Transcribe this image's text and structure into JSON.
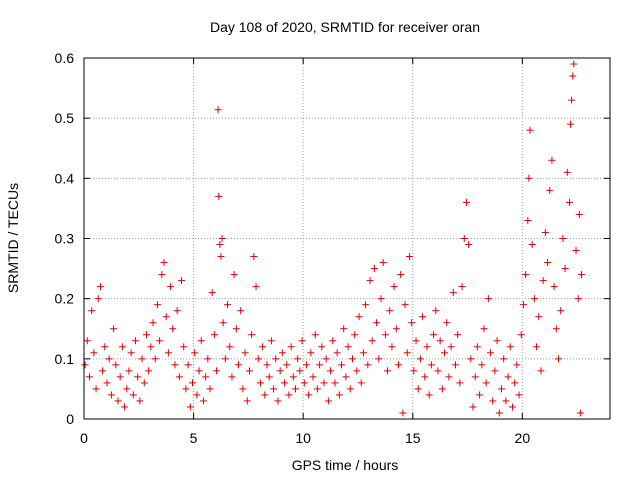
{
  "chart_data": {
    "type": "scatter",
    "title": "Day 108 of 2020, SRMTID for receiver oran",
    "xlabel": "GPS time / hours",
    "ylabel": "SRMTID / TECUs",
    "xlim": [
      0,
      24
    ],
    "ylim": [
      0,
      0.6
    ],
    "xticks": [
      {
        "value": 0,
        "label": "0"
      },
      {
        "value": 5,
        "label": "5"
      },
      {
        "value": 10,
        "label": "10"
      },
      {
        "value": 15,
        "label": "15"
      },
      {
        "value": 20,
        "label": "20"
      }
    ],
    "yticks": [
      {
        "value": 0,
        "label": "0"
      },
      {
        "value": 0.1,
        "label": "0.1"
      },
      {
        "value": 0.2,
        "label": "0.2"
      },
      {
        "value": 0.3,
        "label": "0.3"
      },
      {
        "value": 0.4,
        "label": "0.4"
      },
      {
        "value": 0.5,
        "label": "0.5"
      },
      {
        "value": 0.6,
        "label": "0.6"
      }
    ],
    "grid": true,
    "marker": "+",
    "color": "#e00000",
    "series": [
      {
        "name": "SRMTID",
        "points": [
          [
            0.05,
            0.09
          ],
          [
            0.15,
            0.13
          ],
          [
            0.25,
            0.07
          ],
          [
            0.35,
            0.18
          ],
          [
            0.45,
            0.11
          ],
          [
            0.55,
            0.05
          ],
          [
            0.65,
            0.2
          ],
          [
            0.75,
            0.22
          ],
          [
            0.85,
            0.08
          ],
          [
            0.95,
            0.12
          ],
          [
            1.05,
            0.06
          ],
          [
            1.15,
            0.1
          ],
          [
            1.25,
            0.04
          ],
          [
            1.35,
            0.15
          ],
          [
            1.45,
            0.09
          ],
          [
            1.55,
            0.03
          ],
          [
            1.65,
            0.07
          ],
          [
            1.75,
            0.12
          ],
          [
            1.85,
            0.02
          ],
          [
            1.95,
            0.05
          ],
          [
            2.05,
            0.08
          ],
          [
            2.15,
            0.11
          ],
          [
            2.25,
            0.04
          ],
          [
            2.35,
            0.13
          ],
          [
            2.45,
            0.07
          ],
          [
            2.55,
            0.03
          ],
          [
            2.65,
            0.1
          ],
          [
            2.75,
            0.06
          ],
          [
            2.85,
            0.14
          ],
          [
            2.95,
            0.08
          ],
          [
            3.05,
            0.12
          ],
          [
            3.15,
            0.16
          ],
          [
            3.25,
            0.1
          ],
          [
            3.35,
            0.19
          ],
          [
            3.45,
            0.13
          ],
          [
            3.55,
            0.24
          ],
          [
            3.65,
            0.26
          ],
          [
            3.75,
            0.17
          ],
          [
            3.85,
            0.11
          ],
          [
            3.95,
            0.22
          ],
          [
            4.05,
            0.15
          ],
          [
            4.15,
            0.09
          ],
          [
            4.25,
            0.18
          ],
          [
            4.35,
            0.07
          ],
          [
            4.45,
            0.23
          ],
          [
            4.55,
            0.12
          ],
          [
            4.65,
            0.05
          ],
          [
            4.75,
            0.09
          ],
          [
            4.85,
            0.02
          ],
          [
            4.95,
            0.06
          ],
          [
            5.05,
            0.11
          ],
          [
            5.15,
            0.04
          ],
          [
            5.25,
            0.08
          ],
          [
            5.35,
            0.13
          ],
          [
            5.45,
            0.03
          ],
          [
            5.55,
            0.07
          ],
          [
            5.65,
            0.1
          ],
          [
            5.75,
            0.05
          ],
          [
            5.85,
            0.21
          ],
          [
            5.95,
            0.14
          ],
          [
            6.05,
            0.08
          ],
          [
            6.12,
            0.514
          ],
          [
            6.15,
            0.37
          ],
          [
            6.2,
            0.29
          ],
          [
            6.25,
            0.27
          ],
          [
            6.3,
            0.3
          ],
          [
            6.35,
            0.16
          ],
          [
            6.45,
            0.1
          ],
          [
            6.55,
            0.19
          ],
          [
            6.65,
            0.12
          ],
          [
            6.75,
            0.07
          ],
          [
            6.85,
            0.24
          ],
          [
            6.95,
            0.15
          ],
          [
            7.05,
            0.09
          ],
          [
            7.15,
            0.18
          ],
          [
            7.25,
            0.05
          ],
          [
            7.35,
            0.11
          ],
          [
            7.45,
            0.03
          ],
          [
            7.55,
            0.08
          ],
          [
            7.65,
            0.14
          ],
          [
            7.75,
            0.27
          ],
          [
            7.85,
            0.22
          ],
          [
            7.95,
            0.1
          ],
          [
            8.05,
            0.06
          ],
          [
            8.15,
            0.12
          ],
          [
            8.25,
            0.04
          ],
          [
            8.35,
            0.09
          ],
          [
            8.45,
            0.07
          ],
          [
            8.55,
            0.13
          ],
          [
            8.65,
            0.05
          ],
          [
            8.75,
            0.1
          ],
          [
            8.85,
            0.03
          ],
          [
            8.95,
            0.08
          ],
          [
            9.05,
            0.11
          ],
          [
            9.15,
            0.06
          ],
          [
            9.25,
            0.09
          ],
          [
            9.35,
            0.04
          ],
          [
            9.45,
            0.12
          ],
          [
            9.55,
            0.07
          ],
          [
            9.65,
            0.05
          ],
          [
            9.75,
            0.1
          ],
          [
            9.85,
            0.08
          ],
          [
            9.95,
            0.13
          ],
          [
            10.05,
            0.06
          ],
          [
            10.15,
            0.09
          ],
          [
            10.25,
            0.04
          ],
          [
            10.35,
            0.11
          ],
          [
            10.45,
            0.07
          ],
          [
            10.55,
            0.14
          ],
          [
            10.65,
            0.05
          ],
          [
            10.75,
            0.09
          ],
          [
            10.85,
            0.12
          ],
          [
            10.95,
            0.06
          ],
          [
            11.05,
            0.1
          ],
          [
            11.15,
            0.03
          ],
          [
            11.25,
            0.08
          ],
          [
            11.35,
            0.13
          ],
          [
            11.45,
            0.06
          ],
          [
            11.55,
            0.11
          ],
          [
            11.65,
            0.04
          ],
          [
            11.75,
            0.09
          ],
          [
            11.85,
            0.15
          ],
          [
            11.95,
            0.07
          ],
          [
            12.05,
            0.12
          ],
          [
            12.15,
            0.05
          ],
          [
            12.25,
            0.1
          ],
          [
            12.35,
            0.14
          ],
          [
            12.45,
            0.08
          ],
          [
            12.55,
            0.17
          ],
          [
            12.65,
            0.06
          ],
          [
            12.75,
            0.11
          ],
          [
            12.85,
            0.19
          ],
          [
            12.95,
            0.09
          ],
          [
            13.05,
            0.23
          ],
          [
            13.15,
            0.13
          ],
          [
            13.25,
            0.25
          ],
          [
            13.35,
            0.16
          ],
          [
            13.45,
            0.1
          ],
          [
            13.55,
            0.2
          ],
          [
            13.65,
            0.26
          ],
          [
            13.75,
            0.14
          ],
          [
            13.85,
            0.08
          ],
          [
            13.95,
            0.18
          ],
          [
            14.05,
            0.12
          ],
          [
            14.15,
            0.22
          ],
          [
            14.25,
            0.15
          ],
          [
            14.35,
            0.09
          ],
          [
            14.45,
            0.24
          ],
          [
            14.55,
            0.01
          ],
          [
            14.65,
            0.19
          ],
          [
            14.75,
            0.11
          ],
          [
            14.85,
            0.27
          ],
          [
            14.95,
            0.16
          ],
          [
            15.05,
            0.08
          ],
          [
            15.15,
            0.13
          ],
          [
            15.25,
            0.05
          ],
          [
            15.35,
            0.1
          ],
          [
            15.45,
            0.17
          ],
          [
            15.55,
            0.07
          ],
          [
            15.65,
            0.12
          ],
          [
            15.75,
            0.04
          ],
          [
            15.85,
            0.09
          ],
          [
            15.95,
            0.14
          ],
          [
            16.05,
            0.18
          ],
          [
            16.15,
            0.08
          ],
          [
            16.25,
            0.13
          ],
          [
            16.35,
            0.05
          ],
          [
            16.45,
            0.11
          ],
          [
            16.55,
            0.16
          ],
          [
            16.65,
            0.07
          ],
          [
            16.75,
            0.12
          ],
          [
            16.85,
            0.21
          ],
          [
            16.95,
            0.09
          ],
          [
            17.05,
            0.14
          ],
          [
            17.15,
            0.06
          ],
          [
            17.25,
            0.22
          ],
          [
            17.35,
            0.3
          ],
          [
            17.45,
            0.36
          ],
          [
            17.55,
            0.29
          ],
          [
            17.65,
            0.1
          ],
          [
            17.75,
            0.02
          ],
          [
            17.85,
            0.07
          ],
          [
            17.95,
            0.12
          ],
          [
            18.05,
            0.04
          ],
          [
            18.15,
            0.09
          ],
          [
            18.25,
            0.15
          ],
          [
            18.35,
            0.06
          ],
          [
            18.45,
            0.2
          ],
          [
            18.55,
            0.11
          ],
          [
            18.65,
            0.03
          ],
          [
            18.75,
            0.08
          ],
          [
            18.85,
            0.13
          ],
          [
            18.95,
            0.01
          ],
          [
            19.05,
            0.05
          ],
          [
            19.15,
            0.1
          ],
          [
            19.25,
            0.03
          ],
          [
            19.35,
            0.07
          ],
          [
            19.45,
            0.12
          ],
          [
            19.55,
            0.02
          ],
          [
            19.65,
            0.06
          ],
          [
            19.75,
            0.09
          ],
          [
            19.85,
            0.04
          ],
          [
            19.95,
            0.14
          ],
          [
            20.05,
            0.19
          ],
          [
            20.15,
            0.24
          ],
          [
            20.25,
            0.33
          ],
          [
            20.3,
            0.4
          ],
          [
            20.35,
            0.48
          ],
          [
            20.45,
            0.29
          ],
          [
            20.55,
            0.2
          ],
          [
            20.65,
            0.12
          ],
          [
            20.75,
            0.17
          ],
          [
            20.85,
            0.08
          ],
          [
            20.95,
            0.23
          ],
          [
            21.05,
            0.31
          ],
          [
            21.15,
            0.26
          ],
          [
            21.25,
            0.38
          ],
          [
            21.35,
            0.43
          ],
          [
            21.45,
            0.22
          ],
          [
            21.55,
            0.15
          ],
          [
            21.65,
            0.1
          ],
          [
            21.75,
            0.18
          ],
          [
            21.85,
            0.3
          ],
          [
            21.95,
            0.25
          ],
          [
            22.05,
            0.41
          ],
          [
            22.15,
            0.36
          ],
          [
            22.2,
            0.49
          ],
          [
            22.25,
            0.53
          ],
          [
            22.3,
            0.57
          ],
          [
            22.35,
            0.59
          ],
          [
            22.45,
            0.28
          ],
          [
            22.55,
            0.2
          ],
          [
            22.6,
            0.34
          ],
          [
            22.65,
            0.01
          ],
          [
            22.7,
            0.24
          ]
        ]
      }
    ]
  }
}
